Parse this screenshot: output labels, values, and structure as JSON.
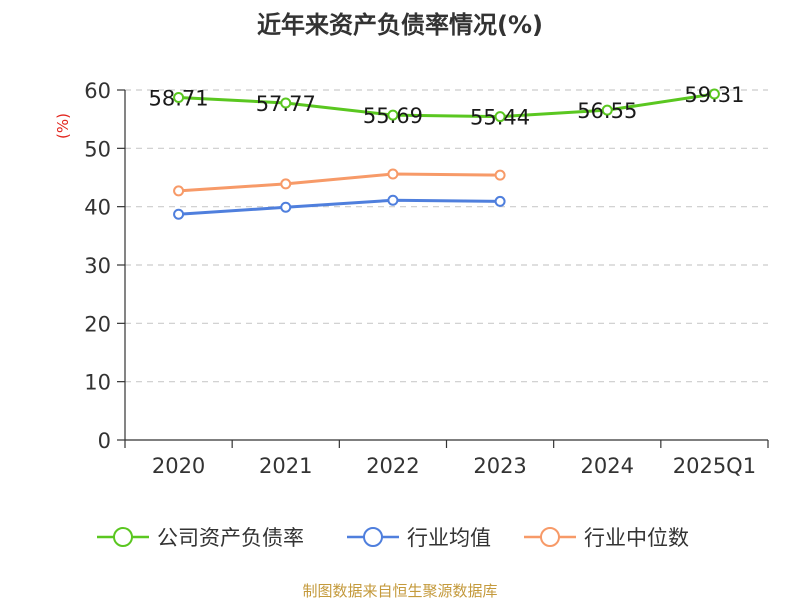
{
  "chart_data": {
    "type": "line",
    "title": "近年来资产负债率情况(%)",
    "ylabel": "(%)",
    "xlabel": "",
    "categories": [
      "2020",
      "2021",
      "2022",
      "2023",
      "2024",
      "2025Q1"
    ],
    "ylim": [
      0,
      60
    ],
    "yticks": [
      0,
      10,
      20,
      30,
      40,
      50,
      60
    ],
    "grid": true,
    "legend_position": "bottom",
    "series": [
      {
        "name": "公司资产负债率",
        "color": "#5ac720",
        "values": [
          58.71,
          57.77,
          55.69,
          55.44,
          56.55,
          59.31
        ],
        "data_labels": [
          "58.71",
          "57.77",
          "55.69",
          "55.44",
          "56.55",
          "59.31"
        ]
      },
      {
        "name": "行业均值",
        "color": "#4f7fdd",
        "values": [
          38.7,
          39.9,
          41.1,
          40.9,
          null,
          null
        ]
      },
      {
        "name": "行业中位数",
        "color": "#f79a68",
        "values": [
          42.7,
          43.9,
          45.6,
          45.4,
          null,
          null
        ]
      }
    ]
  },
  "source_note": "制图数据来自恒生聚源数据库",
  "colors": {
    "unit_label": "#e2251e",
    "source_note": "#c49a3c",
    "axis": "#333333",
    "grid": "#cccccc"
  }
}
